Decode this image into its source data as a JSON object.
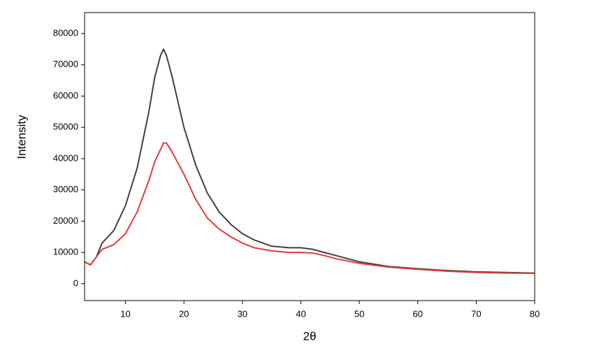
{
  "chart_data": {
    "type": "line",
    "x_label": "2θ",
    "y_label": "Intensity",
    "x": [
      3,
      4,
      5,
      6,
      8,
      10,
      12,
      14,
      15,
      16,
      16.5,
      17,
      18,
      20,
      22,
      24,
      26,
      28,
      30,
      32,
      35,
      38,
      40,
      42,
      44,
      46,
      50,
      55,
      60,
      65,
      70,
      75,
      80
    ],
    "series": [
      {
        "color": "#404040",
        "values": [
          7000,
          6000,
          8500,
          13000,
          17000,
          25000,
          37000,
          55000,
          66000,
          73000,
          75000,
          73000,
          66000,
          50000,
          38000,
          29000,
          23000,
          19000,
          16000,
          14000,
          12000,
          11500,
          11500,
          11000,
          10000,
          9000,
          7000,
          5500,
          4800,
          4200,
          3800,
          3600,
          3400
        ]
      },
      {
        "color": "#e03c3c",
        "values": [
          7000,
          6000,
          8500,
          11000,
          12500,
          16000,
          23000,
          33000,
          39000,
          43000,
          45000,
          45000,
          42000,
          35000,
          27000,
          21000,
          17500,
          15000,
          13000,
          11500,
          10500,
          10000,
          10000,
          9800,
          9000,
          8000,
          6500,
          5300,
          4600,
          4000,
          3600,
          3400,
          3300
        ]
      }
    ],
    "xlim": [
      3,
      80
    ],
    "ylim": [
      -5400,
      86700
    ],
    "xticks": [
      10,
      20,
      30,
      40,
      50,
      60,
      70,
      80
    ],
    "yticks": [
      0,
      10000,
      20000,
      30000,
      40000,
      50000,
      60000,
      70000,
      80000
    ],
    "grid": false
  }
}
